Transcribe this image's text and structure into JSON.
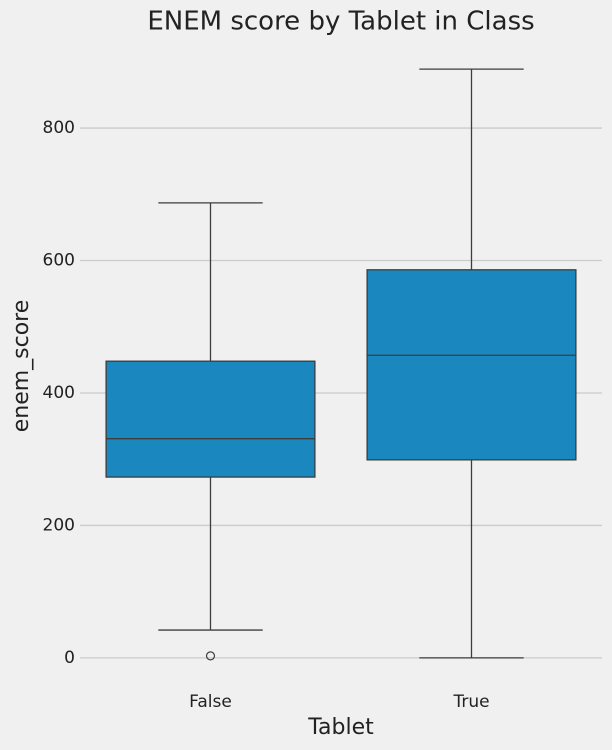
{
  "chart_data": {
    "type": "box",
    "title": "ENEM score by Tablet in Class",
    "x_label": "Tablet",
    "y_label": "enem_score",
    "categories": [
      "False",
      "True"
    ],
    "boxes": [
      {
        "min": 42,
        "q1": 273,
        "median": 331,
        "q3": 448,
        "max": 687,
        "outliers": [
          3
        ]
      },
      {
        "min": 0,
        "q1": 299,
        "median": 457,
        "q3": 586,
        "max": 889,
        "outliers": []
      }
    ],
    "color": "#1a88bf",
    "ylim": [
      -44,
      933
    ],
    "yticks": [
      0,
      200,
      400,
      600,
      800
    ],
    "grid": true
  }
}
